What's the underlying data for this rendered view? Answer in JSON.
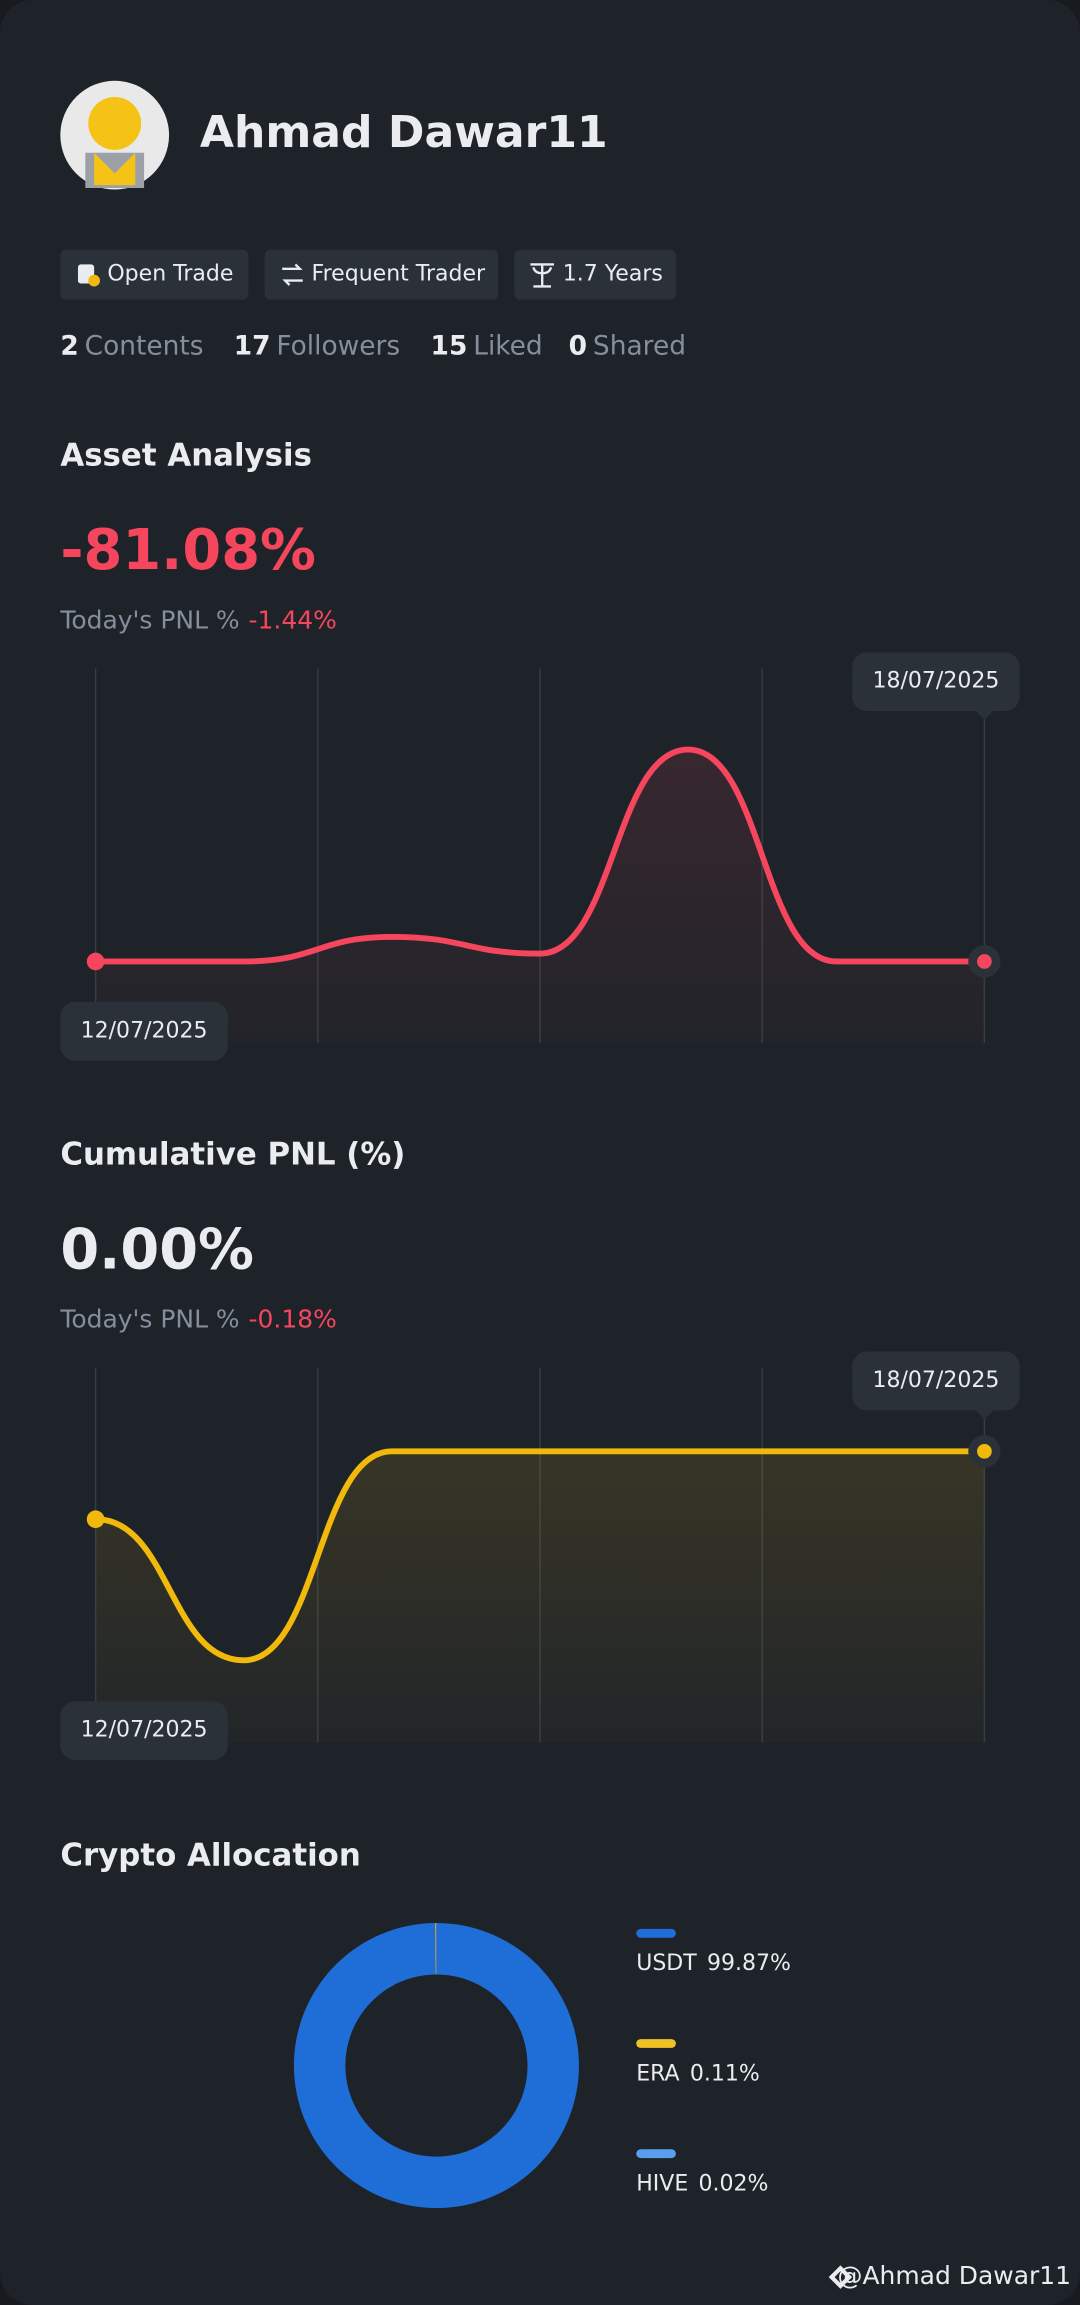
{
  "profile": {
    "name": "Ahmad Dawar11",
    "tags": [
      "Open Trade",
      "Frequent Trader",
      "1.7 Years"
    ],
    "stats": [
      {
        "value": 2,
        "label": "Contents"
      },
      {
        "value": 17,
        "label": "Followers"
      },
      {
        "value": 15,
        "label": "Liked"
      },
      {
        "value": 0,
        "label": "Shared"
      }
    ],
    "watermark": "@Ahmad Dawar11"
  },
  "chart_data": [
    {
      "type": "line",
      "title": "Asset Analysis",
      "headline": "-81.08%",
      "subtitle": "Today's PNL %",
      "subtitle_value": "-1.44%",
      "categories": [
        "12/07/2025",
        null,
        null,
        null,
        null,
        null,
        "18/07/2025"
      ],
      "values": [
        -81.08,
        -81.08,
        -79.9,
        -80.7,
        -70.9,
        -81.08,
        -81.08
      ],
      "color": "#f6465d",
      "ylim": [
        -85,
        -67
      ]
    },
    {
      "type": "line",
      "title": "Cumulative PNL (%)",
      "headline": "0.00%",
      "subtitle": "Today's PNL %",
      "subtitle_value": "-0.18%",
      "categories": [
        "12/07/2025",
        null,
        null,
        null,
        null,
        null,
        "18/07/2025"
      ],
      "values": [
        -0.13,
        -0.4,
        0,
        0,
        0,
        0,
        0
      ],
      "color": "#f0b90b",
      "ylim": [
        -0.557,
        0.16
      ]
    },
    {
      "type": "pie",
      "title": "Crypto Allocation",
      "categories": [
        "USDT",
        "ERA",
        "HIVE"
      ],
      "values": [
        99.87,
        0.11,
        0.02
      ],
      "value_labels": [
        "99.87%",
        "0.11%",
        "0.02%"
      ],
      "colors": [
        "#1f6ed8",
        "#f0c325",
        "#5a9ef0"
      ]
    }
  ]
}
